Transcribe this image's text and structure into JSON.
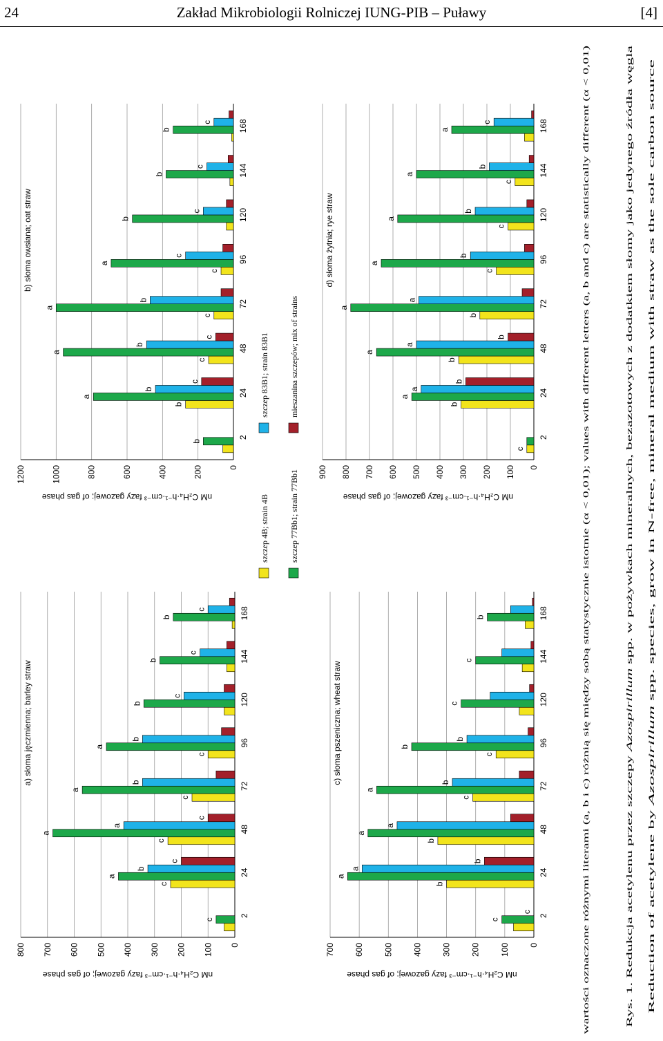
{
  "header": {
    "page": "24",
    "title": "Zakład Mikrobiologii Rolniczej IUNG-PIB – Puławy",
    "ref": "[4]"
  },
  "legend": [
    {
      "name": "szczep 4B; strain 4B",
      "color": "#f2e41c"
    },
    {
      "name": "szczep 83B1; strain 83B1",
      "color": "#1fb2e8"
    },
    {
      "name": "szczep 77Bb1; strain 77Bb1",
      "color": "#1da84a"
    },
    {
      "name": "mieszanina szczepów; mix of strains",
      "color": "#a3202a"
    }
  ],
  "chart_data": [
    {
      "type": "bar",
      "title": "a) słoma jęczmienna; barley straw",
      "ylabel": "nM C₂H₄·h⁻¹·cm⁻³ fazy gazowej; of gas phase",
      "categories": [
        2,
        24,
        48,
        72,
        96,
        120,
        144,
        168
      ],
      "ylim": [
        0,
        800
      ],
      "yticks": [
        0,
        100,
        200,
        300,
        400,
        500,
        600,
        700,
        800
      ],
      "grid": true,
      "series": [
        {
          "values": [
            40,
            240,
            250,
            160,
            100,
            40,
            30,
            10
          ],
          "letters": [
            null,
            "c",
            "c",
            "c",
            "c",
            null,
            null,
            null
          ]
        },
        {
          "values": [
            0,
            325,
            415,
            345,
            345,
            190,
            130,
            100
          ],
          "letters": [
            null,
            "b",
            "a",
            "b",
            "b",
            "c",
            "c",
            "c"
          ]
        },
        {
          "values": [
            70,
            435,
            680,
            570,
            480,
            340,
            280,
            230
          ],
          "letters": [
            "c",
            "a",
            "a",
            "a",
            "a",
            "b",
            "b",
            "b"
          ]
        },
        {
          "values": [
            0,
            200,
            100,
            70,
            50,
            40,
            30,
            20
          ],
          "letters": [
            null,
            "c",
            "c",
            null,
            null,
            null,
            null,
            null
          ]
        }
      ]
    },
    {
      "type": "bar",
      "title": "b) słoma owsiana; oat straw",
      "ylabel": "nM C₂H₄·h⁻¹·cm⁻³ fazy gazowej; of gas phase",
      "categories": [
        2,
        24,
        48,
        72,
        96,
        120,
        144,
        168
      ],
      "ylim": [
        0,
        1200
      ],
      "yticks": [
        0,
        200,
        400,
        600,
        800,
        1000,
        1200
      ],
      "grid": true,
      "series": [
        {
          "values": [
            60,
            270,
            140,
            110,
            70,
            40,
            20,
            10
          ],
          "letters": [
            null,
            "b",
            "c",
            "c",
            "c",
            null,
            null,
            null
          ]
        },
        {
          "values": [
            0,
            440,
            490,
            470,
            270,
            170,
            150,
            110
          ],
          "letters": [
            null,
            "b",
            "b",
            "b",
            "c",
            "c",
            "c",
            "c"
          ]
        },
        {
          "values": [
            170,
            790,
            960,
            1000,
            690,
            570,
            380,
            340
          ],
          "letters": [
            "b",
            "a",
            "a",
            "a",
            "a",
            "b",
            "b",
            "b"
          ]
        },
        {
          "values": [
            0,
            180,
            100,
            70,
            60,
            40,
            30,
            25
          ],
          "letters": [
            null,
            "c",
            "c",
            null,
            null,
            null,
            null,
            null
          ]
        }
      ]
    },
    {
      "type": "bar",
      "title": "c) słoma pszeniczna; wheat straw",
      "ylabel": "nM C₂H₄·h⁻¹·cm⁻³ fazy gazowej; of gas phase",
      "categories": [
        2,
        24,
        48,
        72,
        96,
        120,
        144,
        168
      ],
      "ylim": [
        0,
        700
      ],
      "yticks": [
        0,
        100,
        200,
        300,
        400,
        500,
        600,
        700
      ],
      "grid": true,
      "series": [
        {
          "values": [
            70,
            300,
            330,
            210,
            130,
            50,
            40,
            30
          ],
          "letters": [
            null,
            "b",
            "b",
            "c",
            "c",
            null,
            null,
            null
          ]
        },
        {
          "values": [
            0,
            590,
            470,
            280,
            230,
            150,
            110,
            80
          ],
          "letters": [
            "c",
            "a",
            "a",
            "b",
            "b",
            null,
            null,
            null
          ]
        },
        {
          "values": [
            110,
            640,
            570,
            540,
            420,
            250,
            200,
            160
          ],
          "letters": [
            "c",
            "a",
            "a",
            "a",
            "b",
            "c",
            "c",
            "b"
          ]
        },
        {
          "values": [
            0,
            170,
            80,
            50,
            20,
            15,
            10,
            5
          ],
          "letters": [
            null,
            "b",
            null,
            null,
            null,
            null,
            null,
            null
          ]
        }
      ]
    },
    {
      "type": "bar",
      "title": "d) słoma żytnia; rye straw",
      "ylabel": "nM C₂H₄·h⁻¹·cm⁻³ fazy gazowej; of gas phase",
      "categories": [
        2,
        24,
        48,
        72,
        96,
        120,
        144,
        168
      ],
      "ylim": [
        0,
        900
      ],
      "yticks": [
        0,
        100,
        200,
        300,
        400,
        500,
        600,
        700,
        800,
        900
      ],
      "grid": true,
      "series": [
        {
          "values": [
            30,
            310,
            320,
            230,
            160,
            110,
            80,
            40
          ],
          "letters": [
            "c",
            "b",
            "b",
            "b",
            "c",
            "c",
            "c",
            null
          ]
        },
        {
          "values": [
            0,
            480,
            500,
            490,
            270,
            250,
            190,
            170
          ],
          "letters": [
            null,
            "a",
            "a",
            "a",
            "b",
            "b",
            "b",
            "c"
          ]
        },
        {
          "values": [
            30,
            520,
            670,
            780,
            650,
            580,
            500,
            350
          ],
          "letters": [
            null,
            "a",
            "a",
            "a",
            "a",
            "a",
            "a",
            "a"
          ]
        },
        {
          "values": [
            0,
            290,
            110,
            50,
            40,
            30,
            20,
            10
          ],
          "letters": [
            null,
            "b",
            "b",
            null,
            null,
            null,
            null,
            null
          ]
        }
      ]
    }
  ],
  "caption": {
    "note": "wartości oznaczone różnymi literami (a, b i c) różnią się między sobą statystycznie istotnie (α < 0,01); values with different letters (a, b and c) are statistically different (α < 0,01)",
    "lines": [
      [
        "Rys. 1. Redukcja acetylenu przez szczepy ",
        "Azospirillum",
        " spp. w pożywkach mineralnych, bezazotowych z dodatkiem słomy jako jedynego źródła węgla"
      ],
      [
        "Reduction of acetylene by ",
        "Azospirillum",
        " spp. species, grow in N-free, mineral medium with straw as the sole carbon source"
      ]
    ]
  }
}
